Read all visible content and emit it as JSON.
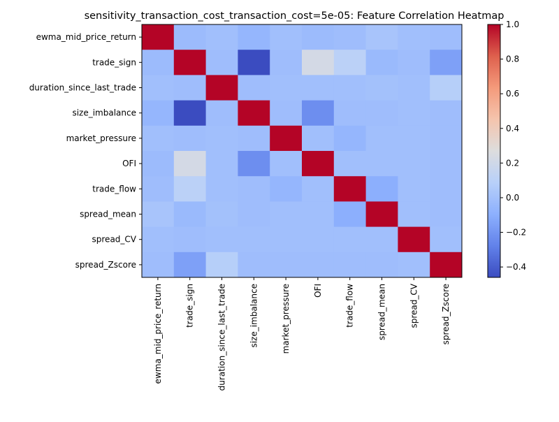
{
  "chart_data": {
    "type": "heatmap",
    "title": "sensitivity_transaction_cost_transaction_cost=5e-05: Feature Correlation Heatmap",
    "row_labels": [
      "ewma_mid_price_return",
      "trade_sign",
      "duration_since_last_trade",
      "size_imbalance",
      "market_pressure",
      "OFI",
      "trade_flow",
      "spread_mean",
      "spread_CV",
      "spread_Zscore"
    ],
    "col_labels": [
      "ewma_mid_price_return",
      "trade_sign",
      "duration_since_last_trade",
      "size_imbalance",
      "market_pressure",
      "OFI",
      "trade_flow",
      "spread_mean",
      "spread_CV",
      "spread_Zscore"
    ],
    "values": [
      [
        1.0,
        -0.03,
        -0.01,
        -0.06,
        -0.01,
        -0.03,
        -0.02,
        0.02,
        -0.01,
        -0.02
      ],
      [
        -0.03,
        1.0,
        -0.02,
        -0.46,
        -0.02,
        0.22,
        0.1,
        -0.04,
        -0.02,
        -0.16
      ],
      [
        -0.01,
        -0.02,
        1.0,
        -0.02,
        -0.01,
        -0.01,
        -0.01,
        0.0,
        -0.01,
        0.08
      ],
      [
        -0.06,
        -0.46,
        -0.02,
        1.0,
        -0.02,
        -0.23,
        -0.02,
        -0.02,
        -0.01,
        -0.02
      ],
      [
        -0.01,
        -0.02,
        -0.01,
        -0.02,
        1.0,
        -0.01,
        -0.06,
        -0.01,
        -0.01,
        -0.02
      ],
      [
        -0.03,
        0.22,
        -0.01,
        -0.23,
        -0.01,
        1.0,
        -0.01,
        -0.01,
        -0.01,
        -0.02
      ],
      [
        -0.02,
        0.1,
        -0.01,
        -0.02,
        -0.06,
        -0.01,
        1.0,
        -0.1,
        -0.01,
        -0.02
      ],
      [
        0.02,
        -0.04,
        0.0,
        -0.02,
        -0.01,
        -0.01,
        -0.1,
        1.0,
        -0.01,
        -0.02
      ],
      [
        -0.01,
        -0.02,
        -0.01,
        -0.01,
        -0.01,
        -0.01,
        -0.01,
        -0.01,
        1.0,
        -0.01
      ],
      [
        -0.02,
        -0.16,
        0.08,
        -0.02,
        -0.02,
        -0.02,
        -0.02,
        -0.02,
        -0.01,
        1.0
      ]
    ],
    "colormap": "coolwarm",
    "vmin": -0.46,
    "vmax": 1.0,
    "colorbar_ticks": [
      -0.4,
      -0.2,
      0.0,
      0.2,
      0.4,
      0.6,
      0.8,
      1.0
    ],
    "colorbar_tick_labels": [
      "−0.4",
      "−0.2",
      "0.0",
      "0.2",
      "0.4",
      "0.6",
      "0.8",
      "1.0"
    ]
  }
}
